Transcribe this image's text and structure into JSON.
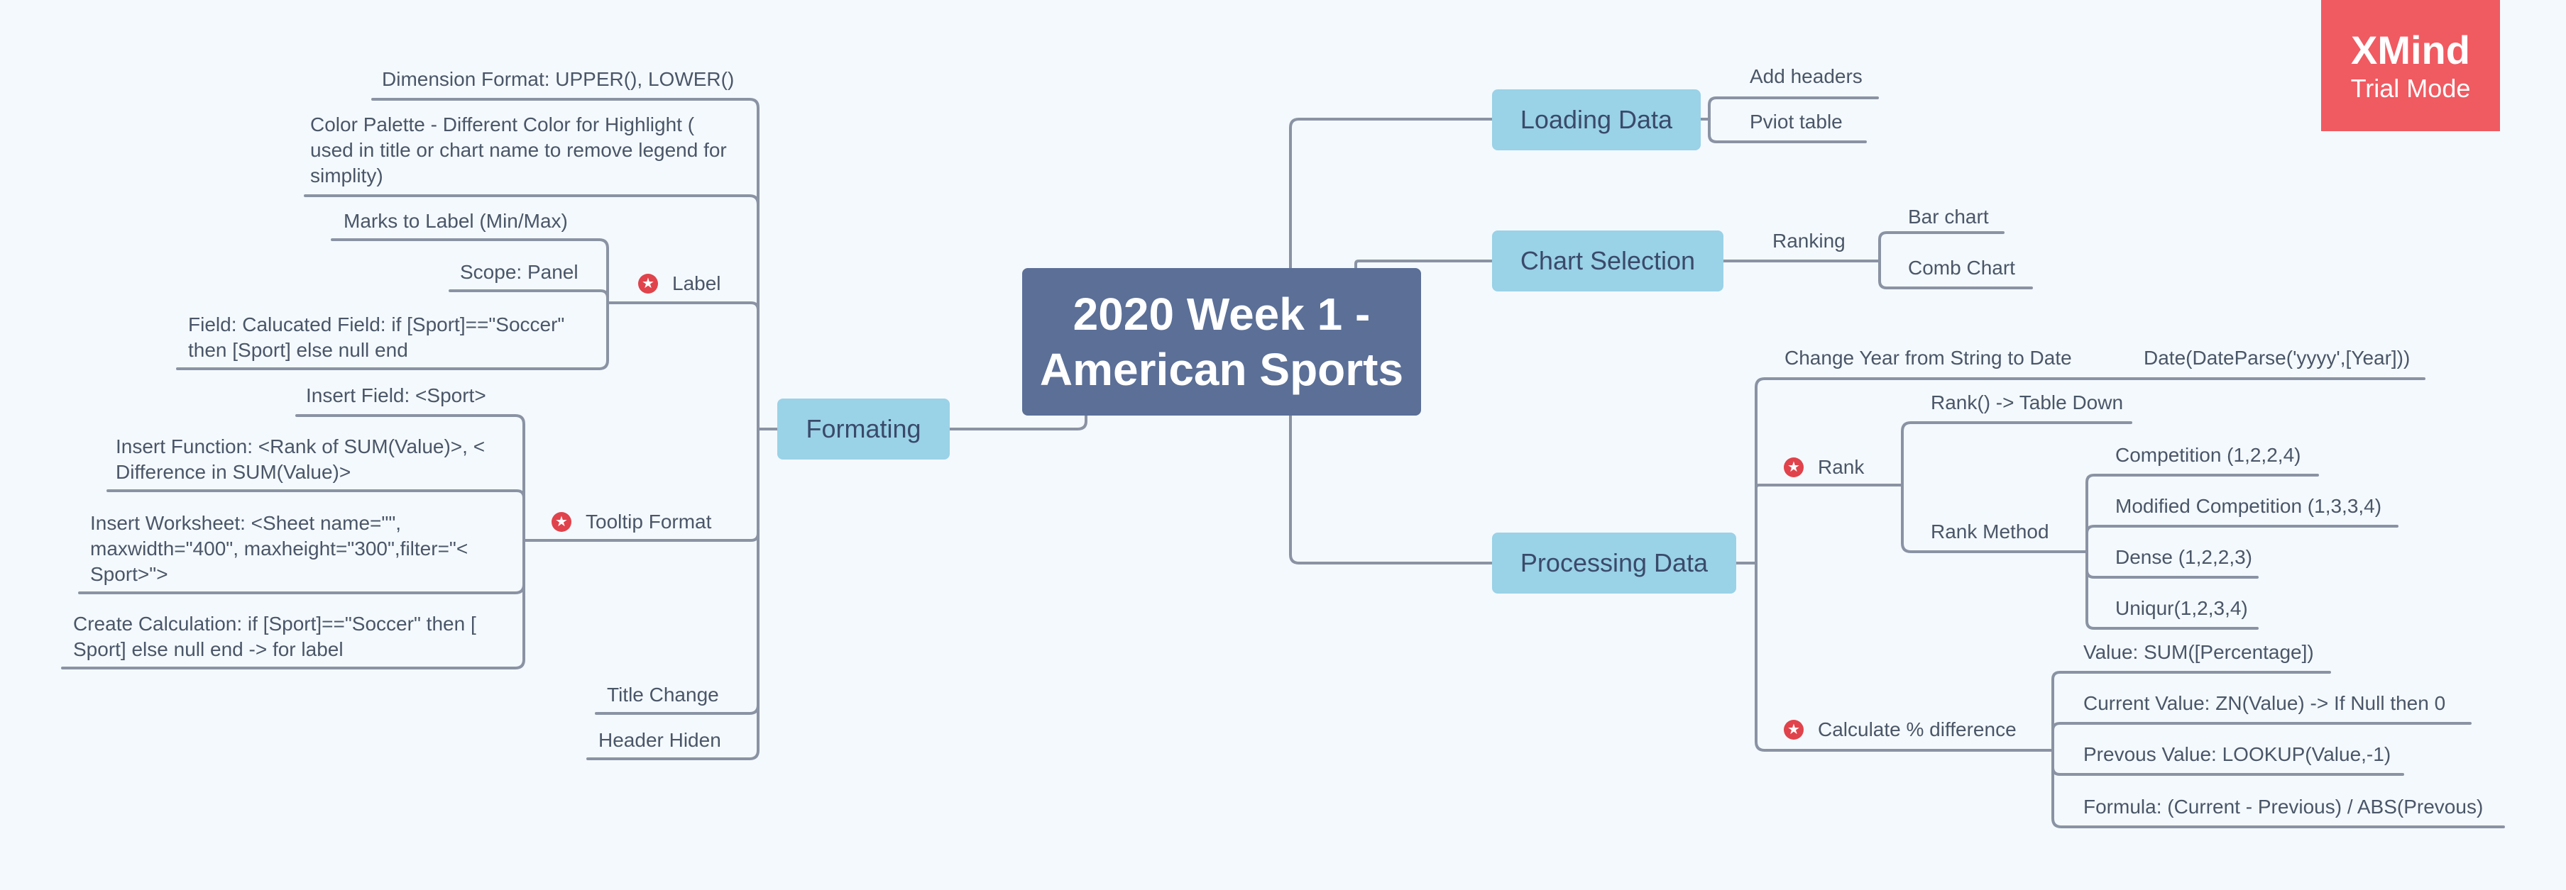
{
  "central": {
    "line1": "2020 Week 1 -",
    "line2": "American Sports"
  },
  "watermark": {
    "line1": "XMind",
    "line2": "Trial Mode"
  },
  "colors": {
    "background": "#f4f9fd",
    "central": "#5b6f97",
    "main": "#9ad2e7",
    "line": "#8a93a3",
    "star": "#e0434b",
    "logo": "#f05a61"
  },
  "icons": {
    "marker": "star-icon"
  },
  "right": {
    "loading": {
      "label": "Loading Data",
      "children": [
        "Add headers",
        "Pviot table"
      ]
    },
    "chart": {
      "label": "Chart Selection",
      "ranking": "Ranking",
      "children": [
        "Bar chart",
        "Comb Chart"
      ]
    },
    "processing": {
      "label": "Processing Data",
      "change_year": "Change Year from String to Date",
      "date_parse": "Date(DateParse('yyyy',[Year]))",
      "rank": "Rank",
      "rank_table": "Rank() -> Table Down",
      "rank_method": "Rank Method",
      "methods": [
        "Competition (1,2,2,4)",
        "Modified Competition (1,3,3,4)",
        "Dense (1,2,2,3)",
        "Uniqur(1,2,3,4)"
      ],
      "calc": "Calculate % difference",
      "calc_items": [
        "Value: SUM([Percentage])",
        "Current Value: ZN(Value) -> If Null then 0",
        "Prevous Value: LOOKUP(Value,-1)",
        "Formula: (Current - Previous) / ABS(Prevous)"
      ]
    }
  },
  "left": {
    "formating": {
      "label": "Formating",
      "dimension": "Dimension Format: UPPER(), LOWER()",
      "palette": "Color Palette - Different Color for Highlight ( used in title or chart name to remove legend for simplity)",
      "label_node": "Label",
      "label_items": [
        "Marks to Label (Min/Max)",
        "Scope: Panel",
        "Field: Calucated Field: if [Sport]==\"Soccer\" then [Sport] else null end"
      ],
      "tooltip": "Tooltip Format",
      "tooltip_items": [
        "Insert Field: <Sport>",
        "Insert Function: <Rank of SUM(Value)>, < Difference in SUM(Value)>",
        "Insert Worksheet: <Sheet name=\"\", maxwidth=\"400\", maxheight=\"300\",filter=\"< Sport>\">",
        "Create Calculation: if [Sport]==\"Soccer\" then [ Sport] else null end -> for label"
      ],
      "title_change": "Title Change",
      "header_hiden": "Header Hiden"
    }
  }
}
